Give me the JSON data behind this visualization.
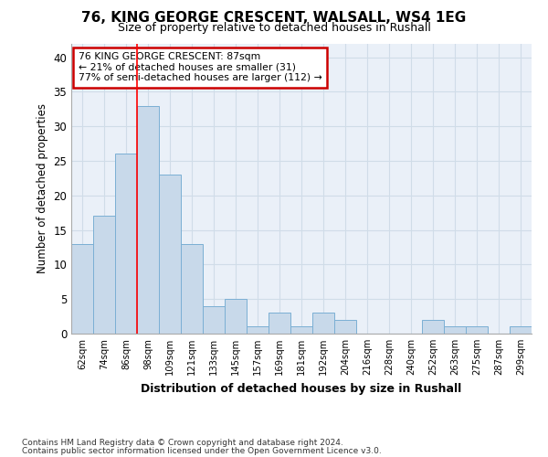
{
  "title1": "76, KING GEORGE CRESCENT, WALSALL, WS4 1EG",
  "title2": "Size of property relative to detached houses in Rushall",
  "xlabel": "Distribution of detached houses by size in Rushall",
  "ylabel": "Number of detached properties",
  "categories": [
    "62sqm",
    "74sqm",
    "86sqm",
    "98sqm",
    "109sqm",
    "121sqm",
    "133sqm",
    "145sqm",
    "157sqm",
    "169sqm",
    "181sqm",
    "192sqm",
    "204sqm",
    "216sqm",
    "228sqm",
    "240sqm",
    "252sqm",
    "263sqm",
    "275sqm",
    "287sqm",
    "299sqm"
  ],
  "values": [
    13,
    17,
    26,
    33,
    23,
    13,
    4,
    5,
    1,
    3,
    1,
    3,
    2,
    0,
    0,
    0,
    2,
    1,
    1,
    0,
    1
  ],
  "bar_color": "#c8d9ea",
  "bar_edge_color": "#7bafd4",
  "background_color": "#eaf0f8",
  "grid_color": "#d0dce8",
  "red_line_index": 2,
  "annotation_line1": "76 KING GEORGE CRESCENT: 87sqm",
  "annotation_line2": "← 21% of detached houses are smaller (31)",
  "annotation_line3": "77% of semi-detached houses are larger (112) →",
  "annotation_box_color": "#ffffff",
  "annotation_box_edge": "#cc0000",
  "footnote1": "Contains HM Land Registry data © Crown copyright and database right 2024.",
  "footnote2": "Contains public sector information licensed under the Open Government Licence v3.0.",
  "ylim": [
    0,
    42
  ],
  "yticks": [
    0,
    5,
    10,
    15,
    20,
    25,
    30,
    35,
    40
  ]
}
